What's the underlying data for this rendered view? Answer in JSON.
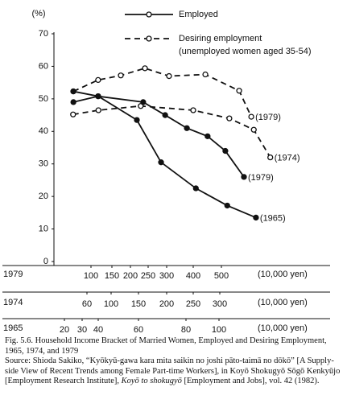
{
  "chart_data": {
    "type": "line",
    "y_label": "(%)",
    "ylim": [
      0,
      70
    ],
    "yticks": [
      0,
      10,
      20,
      30,
      40,
      50,
      60,
      70
    ],
    "legend": [
      {
        "name": "Employed",
        "style": "solid"
      },
      {
        "name": "Desiring employment",
        "note": "(unemployed women aged 35-54)",
        "style": "dashed"
      }
    ],
    "x_axes": [
      {
        "label": "1979",
        "ticks": [
          100,
          150,
          200,
          250,
          300,
          400,
          500
        ],
        "unit": "(10,000 yen)"
      },
      {
        "label": "1974",
        "ticks": [
          60,
          100,
          150,
          200,
          250,
          300
        ],
        "unit": "(10,000 yen)"
      },
      {
        "label": "1965",
        "ticks": [
          20,
          30,
          40,
          60,
          80,
          100
        ],
        "unit": "(10,000 yen)"
      }
    ],
    "series": [
      {
        "style": "dashed",
        "x_axis": "1979",
        "end_label": "(1979)",
        "color": "#111111",
        "x": [
          58,
          117,
          174,
          241,
          309,
          443,
          563,
          606
        ],
        "values": [
          52.3,
          55.8,
          57.2,
          59.4,
          57.0,
          57.5,
          52.5,
          44.5
        ]
      },
      {
        "style": "dashed",
        "x_axis": "1974",
        "end_label": "(1974)",
        "color": "#111111",
        "x": [
          37,
          79,
          154,
          250,
          318,
          364,
          395
        ],
        "values": [
          45.2,
          46.5,
          47.8,
          46.5,
          44.0,
          40.5,
          32.0
        ]
      },
      {
        "style": "solid",
        "x_axis": "1979",
        "end_label": "(1979)",
        "color": "#111111",
        "x": [
          58,
          117,
          236,
          296,
          376,
          451,
          514,
          580
        ],
        "values": [
          49.0,
          50.8,
          49.0,
          45.0,
          41.0,
          38.5,
          34.0,
          26.0
        ]
      },
      {
        "style": "solid",
        "x_axis": "1965",
        "end_label": "(1965)",
        "color": "#111111",
        "x": [
          25,
          40,
          59.2,
          69.5,
          86,
          105,
          122.4
        ],
        "values": [
          52.3,
          50.8,
          43.5,
          30.5,
          22.5,
          17.2,
          13.5
        ]
      }
    ]
  },
  "caption": {
    "title": "Fig. 5.6. Household Income Bracket of Married Women, Employed and Desiring Employment, 1965, 1974, and 1979",
    "source": [
      "Source: Shioda Sakiko, “Kyōkyū-gawa kara mita saikin no joshi pāto-taimā no dōkō” [A Supply-side View of Recent Trends among Female Part-time Workers], in Koyō Shokugyō Sōgō Kenkyūjo [Employment Research Institute], ",
      "Koyō to shokugyō",
      " [Employment and Jobs], vol. 42 (1982)."
    ]
  }
}
